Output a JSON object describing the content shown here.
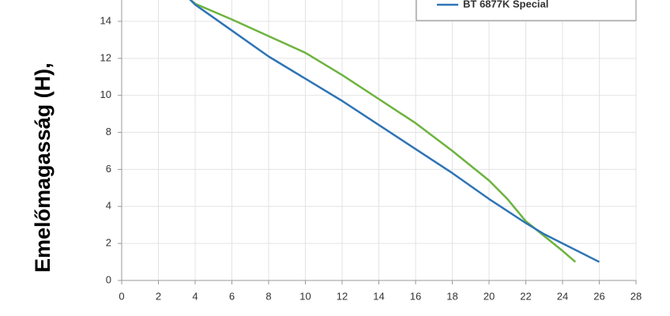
{
  "chart_data": {
    "type": "line",
    "y_label": "Emelőmagasság (H),",
    "xlim": [
      0,
      28
    ],
    "xticks": [
      0,
      2,
      4,
      6,
      8,
      10,
      12,
      14,
      16,
      18,
      20,
      22,
      24,
      26,
      28
    ],
    "ylim": [
      0,
      15.2
    ],
    "yticks": [
      0,
      2,
      4,
      6,
      8,
      10,
      12,
      14
    ],
    "grid": true,
    "series": [
      {
        "color": "#6db33f",
        "x": [
          3.7,
          4,
          6,
          8,
          10,
          12,
          14,
          16,
          18,
          20,
          21,
          22,
          23,
          24,
          24.7
        ],
        "values": [
          15.2,
          14.95,
          14.1,
          13.2,
          12.3,
          11.1,
          9.8,
          8.5,
          7.0,
          5.4,
          4.4,
          3.2,
          2.4,
          1.6,
          1.0
        ]
      },
      {
        "name": "BT 6877K Special",
        "color": "#2e74b5",
        "x": [
          3.7,
          4,
          6,
          8,
          10,
          12,
          14,
          16,
          18,
          20,
          22,
          23,
          24,
          26
        ],
        "values": [
          15.2,
          14.9,
          13.5,
          12.1,
          10.9,
          9.7,
          8.4,
          7.1,
          5.8,
          4.4,
          3.1,
          2.5,
          2.0,
          1.0
        ]
      }
    ]
  }
}
